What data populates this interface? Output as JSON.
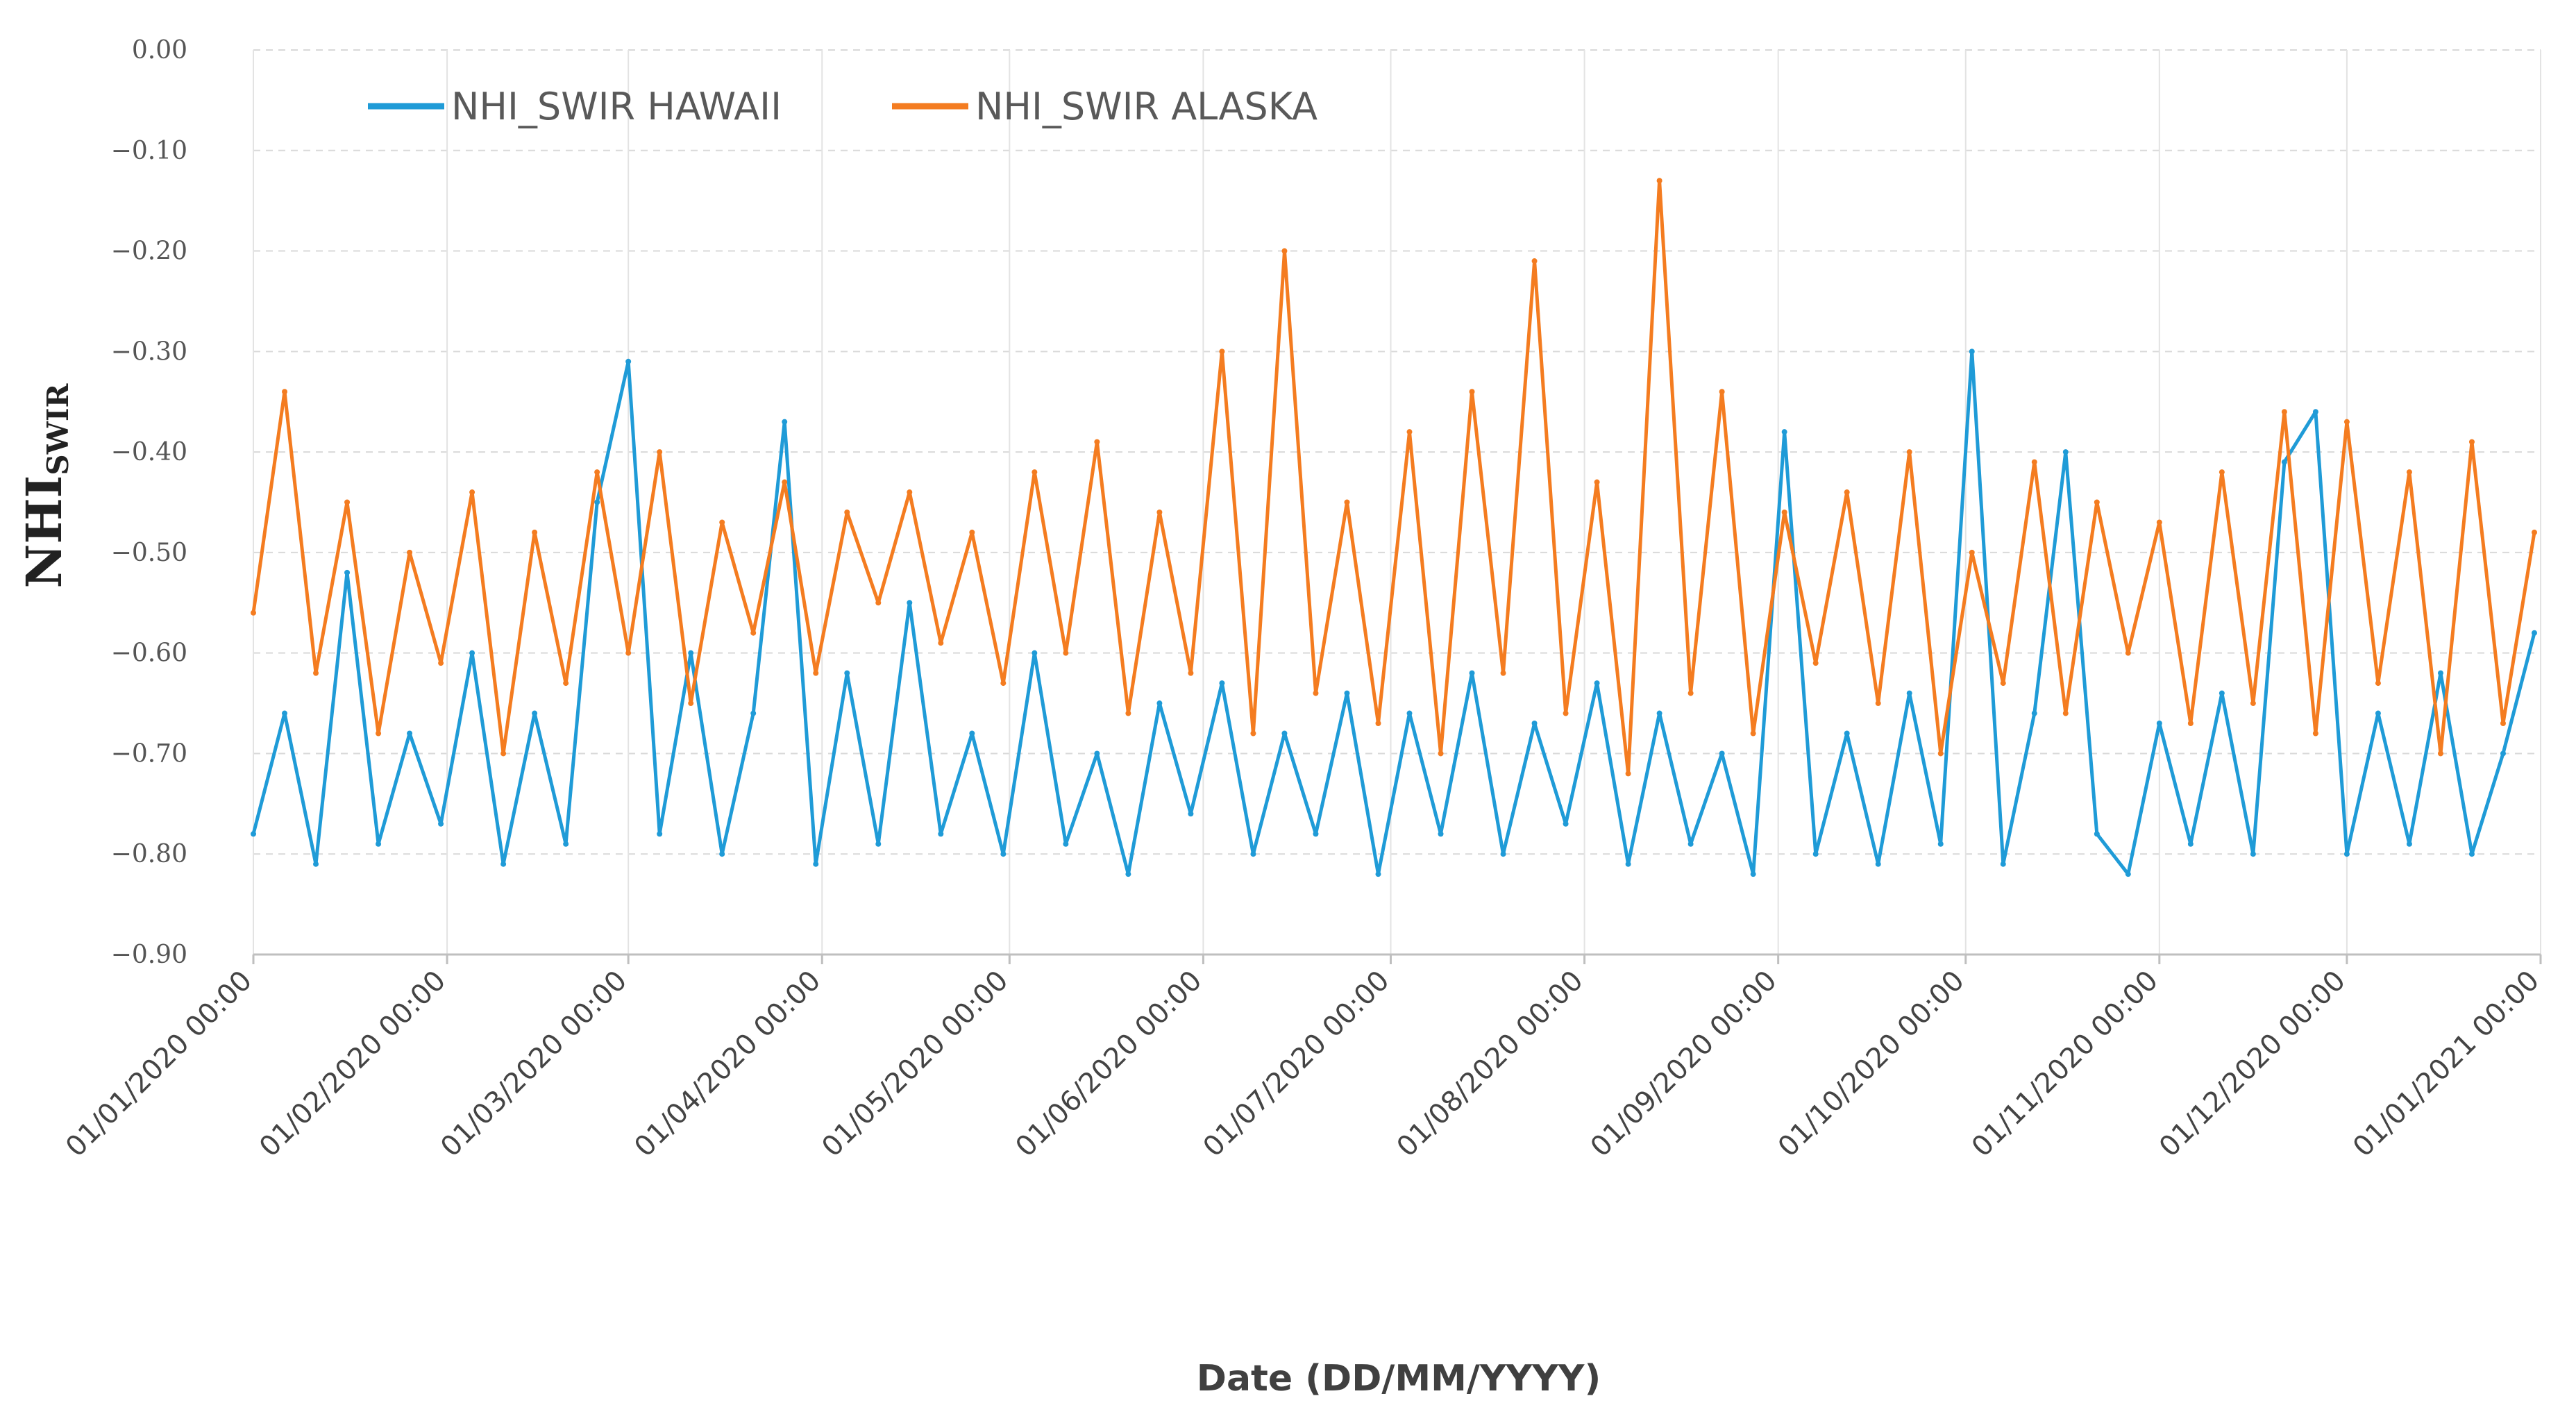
{
  "chart_data": {
    "type": "line",
    "title": "",
    "xlabel": "Date (DD/MM/YYYY)",
    "ylabel": "NHI",
    "ylabel_subscript": "SWIR",
    "ylim": [
      -0.9,
      0.0
    ],
    "y_tick_labels": [
      "0.00",
      "−0.10",
      "−0.20",
      "−0.30",
      "−0.40",
      "−0.50",
      "−0.60",
      "−0.70",
      "−0.80",
      "−0.90"
    ],
    "x_range": [
      "2020-01-01",
      "2021-01-01"
    ],
    "x_tick_labels": [
      "01/01/2020 00:00",
      "01/02/2020 00:00",
      "01/03/2020 00:00",
      "01/04/2020 00:00",
      "01/05/2020 00:00",
      "01/06/2020 00:00",
      "01/07/2020 00:00",
      "01/08/2020 00:00",
      "01/09/2020 00:00",
      "01/10/2020 00:00",
      "01/11/2020 00:00",
      "01/12/2020 00:00",
      "01/01/2021 00:00"
    ],
    "legend_position": "top-left",
    "grid": true,
    "series": [
      {
        "name": "NHI_SWIR HAWAII",
        "color": "#1f9bd7",
        "x": [
          "2020-01-01",
          "2020-01-06",
          "2020-01-11",
          "2020-01-16",
          "2020-01-21",
          "2020-01-26",
          "2020-01-31",
          "2020-02-05",
          "2020-02-10",
          "2020-02-15",
          "2020-02-20",
          "2020-02-25",
          "2020-03-01",
          "2020-03-06",
          "2020-03-11",
          "2020-03-16",
          "2020-03-21",
          "2020-03-26",
          "2020-03-31",
          "2020-04-05",
          "2020-04-10",
          "2020-04-15",
          "2020-04-20",
          "2020-04-25",
          "2020-04-30",
          "2020-05-05",
          "2020-05-10",
          "2020-05-15",
          "2020-05-20",
          "2020-05-25",
          "2020-05-30",
          "2020-06-04",
          "2020-06-09",
          "2020-06-14",
          "2020-06-19",
          "2020-06-24",
          "2020-06-29",
          "2020-07-04",
          "2020-07-09",
          "2020-07-14",
          "2020-07-19",
          "2020-07-24",
          "2020-07-29",
          "2020-08-03",
          "2020-08-08",
          "2020-08-13",
          "2020-08-18",
          "2020-08-23",
          "2020-08-28",
          "2020-09-02",
          "2020-09-07",
          "2020-09-12",
          "2020-09-17",
          "2020-09-22",
          "2020-09-27",
          "2020-10-02",
          "2020-10-07",
          "2020-10-12",
          "2020-10-17",
          "2020-10-22",
          "2020-10-27",
          "2020-11-01",
          "2020-11-06",
          "2020-11-11",
          "2020-11-16",
          "2020-11-21",
          "2020-11-26",
          "2020-12-01",
          "2020-12-06",
          "2020-12-11",
          "2020-12-16",
          "2020-12-21",
          "2020-12-26",
          "2020-12-31"
        ],
        "y": [
          -0.78,
          -0.66,
          -0.81,
          -0.52,
          -0.79,
          -0.68,
          -0.77,
          -0.6,
          -0.81,
          -0.66,
          -0.79,
          -0.45,
          -0.31,
          -0.78,
          -0.6,
          -0.8,
          -0.66,
          -0.37,
          -0.81,
          -0.62,
          -0.79,
          -0.55,
          -0.78,
          -0.68,
          -0.8,
          -0.6,
          -0.79,
          -0.7,
          -0.82,
          -0.65,
          -0.76,
          -0.63,
          -0.8,
          -0.68,
          -0.78,
          -0.64,
          -0.82,
          -0.66,
          -0.78,
          -0.62,
          -0.8,
          -0.67,
          -0.77,
          -0.63,
          -0.81,
          -0.66,
          -0.79,
          -0.7,
          -0.82,
          -0.38,
          -0.8,
          -0.68,
          -0.81,
          -0.64,
          -0.79,
          -0.3,
          -0.81,
          -0.66,
          -0.4,
          -0.78,
          -0.82,
          -0.67,
          -0.79,
          -0.64,
          -0.8,
          -0.41,
          -0.36,
          -0.8,
          -0.66,
          -0.79,
          -0.62,
          -0.8,
          -0.7,
          -0.58
        ]
      },
      {
        "name": "NHI_SWIR ALASKA",
        "color": "#f47c20",
        "x": [
          "2020-01-01",
          "2020-01-06",
          "2020-01-11",
          "2020-01-16",
          "2020-01-21",
          "2020-01-26",
          "2020-01-31",
          "2020-02-05",
          "2020-02-10",
          "2020-02-15",
          "2020-02-20",
          "2020-02-25",
          "2020-03-01",
          "2020-03-06",
          "2020-03-11",
          "2020-03-16",
          "2020-03-21",
          "2020-03-26",
          "2020-03-31",
          "2020-04-05",
          "2020-04-10",
          "2020-04-15",
          "2020-04-20",
          "2020-04-25",
          "2020-04-30",
          "2020-05-05",
          "2020-05-10",
          "2020-05-15",
          "2020-05-20",
          "2020-05-25",
          "2020-05-30",
          "2020-06-04",
          "2020-06-09",
          "2020-06-14",
          "2020-06-19",
          "2020-06-24",
          "2020-06-29",
          "2020-07-04",
          "2020-07-09",
          "2020-07-14",
          "2020-07-19",
          "2020-07-24",
          "2020-07-29",
          "2020-08-03",
          "2020-08-08",
          "2020-08-13",
          "2020-08-18",
          "2020-08-23",
          "2020-08-28",
          "2020-09-02",
          "2020-09-07",
          "2020-09-12",
          "2020-09-17",
          "2020-09-22",
          "2020-09-27",
          "2020-10-02",
          "2020-10-07",
          "2020-10-12",
          "2020-10-17",
          "2020-10-22",
          "2020-10-27",
          "2020-11-01",
          "2020-11-06",
          "2020-11-11",
          "2020-11-16",
          "2020-11-21",
          "2020-11-26",
          "2020-12-01",
          "2020-12-06",
          "2020-12-11",
          "2020-12-16",
          "2020-12-21",
          "2020-12-26",
          "2020-12-31"
        ],
        "y": [
          -0.56,
          -0.34,
          -0.62,
          -0.45,
          -0.68,
          -0.5,
          -0.61,
          -0.44,
          -0.7,
          -0.48,
          -0.63,
          -0.42,
          -0.6,
          -0.4,
          -0.65,
          -0.47,
          -0.58,
          -0.43,
          -0.62,
          -0.46,
          -0.55,
          -0.44,
          -0.59,
          -0.48,
          -0.63,
          -0.42,
          -0.6,
          -0.39,
          -0.66,
          -0.46,
          -0.62,
          -0.3,
          -0.68,
          -0.2,
          -0.64,
          -0.45,
          -0.67,
          -0.38,
          -0.7,
          -0.34,
          -0.62,
          -0.21,
          -0.66,
          -0.43,
          -0.72,
          -0.13,
          -0.64,
          -0.34,
          -0.68,
          -0.46,
          -0.61,
          -0.44,
          -0.65,
          -0.4,
          -0.7,
          -0.5,
          -0.63,
          -0.41,
          -0.66,
          -0.45,
          -0.6,
          -0.47,
          -0.67,
          -0.42,
          -0.65,
          -0.36,
          -0.68,
          -0.37,
          -0.63,
          -0.42,
          -0.7,
          -0.39,
          -0.67,
          -0.48
        ]
      }
    ]
  }
}
